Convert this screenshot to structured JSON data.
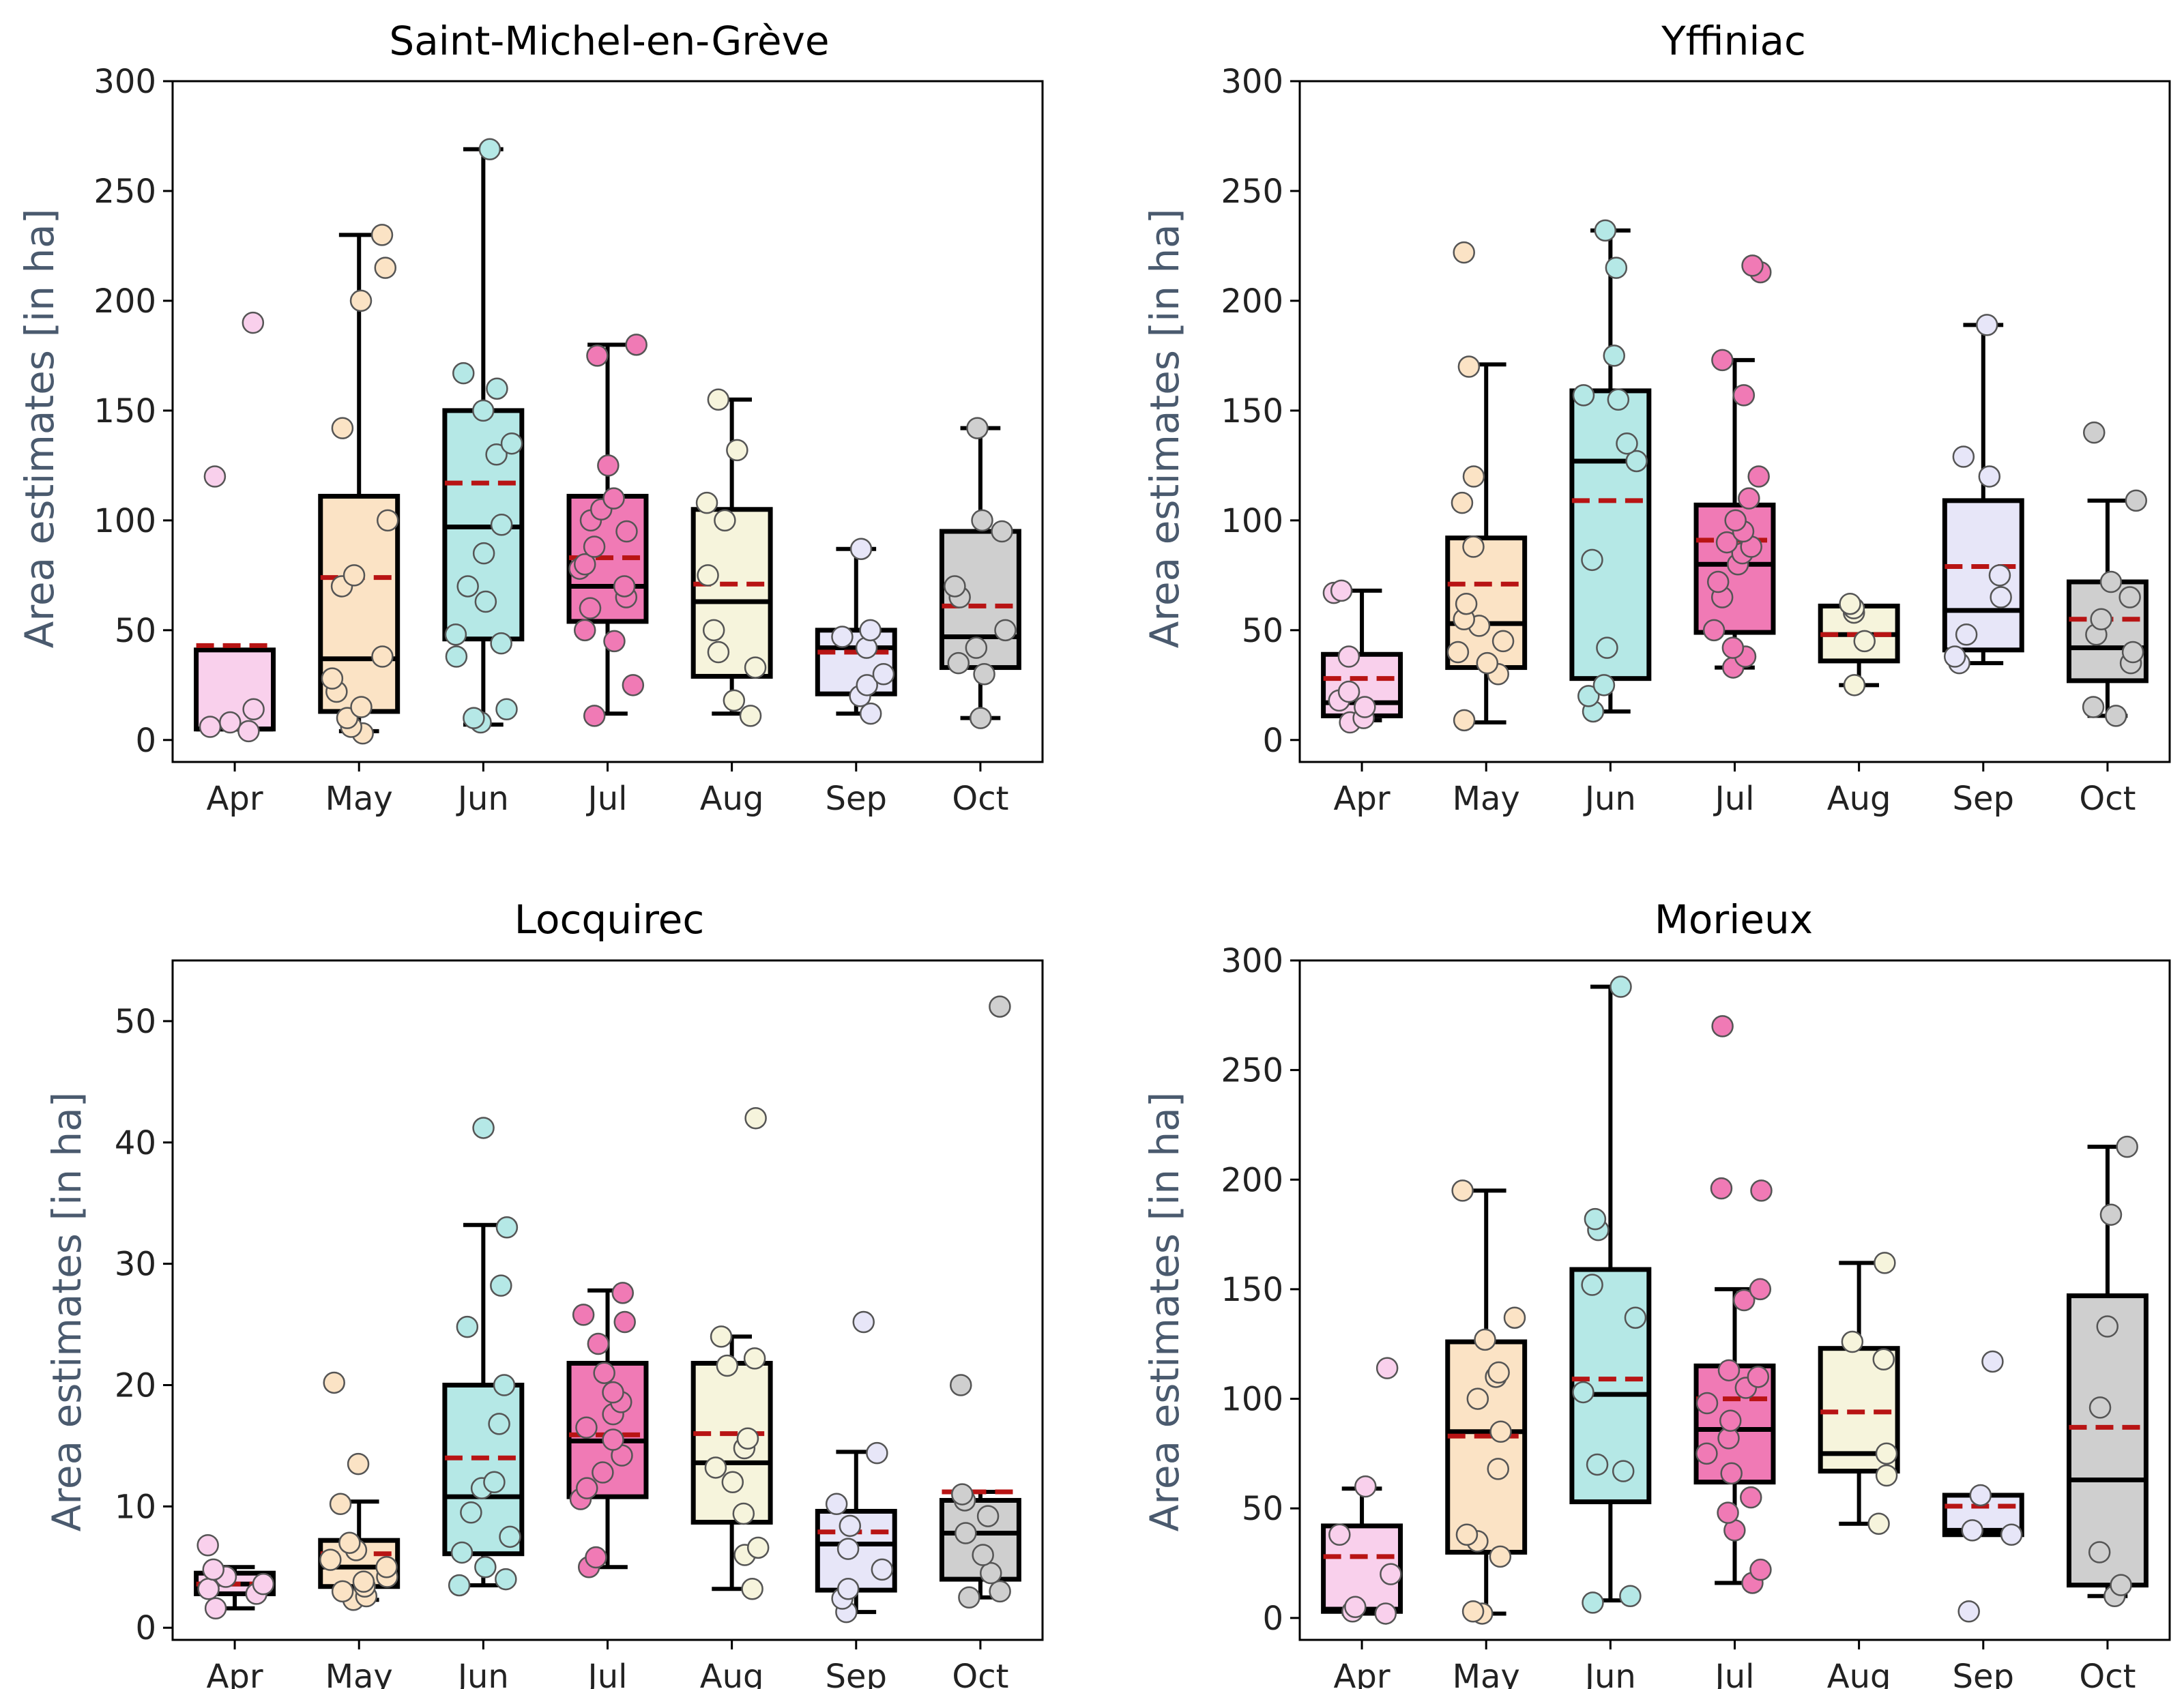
{
  "figure": {
    "colors": {
      "months": [
        "#f9d0ec",
        "#fbe3c5",
        "#b5e8e6",
        "#f07ab5",
        "#f6f4dc",
        "#e7e6f8",
        "#cfcfcf"
      ],
      "median": "#000000",
      "mean": "#b81414",
      "axis_label": "#4a5a6e"
    }
  },
  "chart_data": [
    {
      "type": "box",
      "title": "Saint-Michel-en-Grève",
      "xlabel": "",
      "ylabel": "Area estimates [in ha]",
      "ylim": [
        -10,
        300
      ],
      "yticks": [
        0,
        50,
        100,
        150,
        200,
        250,
        300
      ],
      "categories": [
        "Apr",
        "May",
        "Jun",
        "Jul",
        "Aug",
        "Sep",
        "Oct"
      ],
      "boxes": [
        {
          "q1": 5,
          "median": 5,
          "q3": 41,
          "mean": 43,
          "whislo": 5,
          "whishi": 41,
          "points": [
            4,
            6,
            8,
            14,
            120,
            190
          ]
        },
        {
          "q1": 13,
          "median": 37,
          "q3": 111,
          "mean": 74,
          "whislo": 4,
          "whishi": 230,
          "points": [
            3,
            6,
            10,
            15,
            22,
            28,
            38,
            70,
            75,
            100,
            142,
            200,
            215,
            230
          ]
        },
        {
          "q1": 46,
          "median": 97,
          "q3": 150,
          "mean": 117,
          "whislo": 7,
          "whishi": 269,
          "points": [
            8,
            10,
            14,
            38,
            44,
            48,
            63,
            70,
            85,
            98,
            130,
            135,
            150,
            160,
            167,
            269
          ]
        },
        {
          "q1": 54,
          "median": 70,
          "q3": 111,
          "mean": 83,
          "whislo": 12,
          "whishi": 180,
          "points": [
            11,
            25,
            45,
            50,
            60,
            65,
            70,
            78,
            80,
            88,
            95,
            100,
            105,
            110,
            125,
            175,
            180
          ]
        },
        {
          "q1": 29,
          "median": 63,
          "q3": 105,
          "mean": 71,
          "whislo": 12,
          "whishi": 155,
          "points": [
            11,
            18,
            33,
            40,
            50,
            75,
            100,
            108,
            132,
            155
          ]
        },
        {
          "q1": 21,
          "median": 42,
          "q3": 50,
          "mean": 40,
          "whislo": 12,
          "whishi": 87,
          "points": [
            12,
            20,
            25,
            30,
            42,
            47,
            50,
            87
          ]
        },
        {
          "q1": 33,
          "median": 47,
          "q3": 95,
          "mean": 61,
          "whislo": 10,
          "whishi": 142,
          "points": [
            10,
            30,
            35,
            42,
            50,
            65,
            70,
            95,
            100,
            142
          ]
        }
      ]
    },
    {
      "type": "box",
      "title": "Yffiniac",
      "xlabel": "",
      "ylabel": "Area estimates [in ha]",
      "ylim": [
        -10,
        300
      ],
      "yticks": [
        0,
        50,
        100,
        150,
        200,
        250,
        300
      ],
      "categories": [
        "Apr",
        "May",
        "Jun",
        "Jul",
        "Aug",
        "Sep",
        "Oct"
      ],
      "boxes": [
        {
          "q1": 11,
          "median": 17,
          "q3": 39,
          "mean": 28,
          "whislo": 9,
          "whishi": 68,
          "points": [
            8,
            10,
            15,
            18,
            22,
            38,
            67,
            68
          ]
        },
        {
          "q1": 33,
          "median": 53,
          "q3": 92,
          "mean": 71,
          "whislo": 8,
          "whishi": 171,
          "points": [
            9,
            30,
            35,
            40,
            45,
            52,
            55,
            62,
            88,
            108,
            120,
            170,
            222
          ]
        },
        {
          "q1": 28,
          "median": 127,
          "q3": 159,
          "mean": 109,
          "whislo": 13,
          "whishi": 232,
          "points": [
            13,
            20,
            25,
            42,
            82,
            127,
            135,
            155,
            157,
            175,
            215,
            232
          ]
        },
        {
          "q1": 49,
          "median": 80,
          "q3": 107,
          "mean": 91,
          "whislo": 33,
          "whishi": 173,
          "points": [
            33,
            38,
            42,
            50,
            65,
            72,
            80,
            85,
            88,
            90,
            95,
            100,
            110,
            120,
            157,
            173,
            213,
            216
          ]
        },
        {
          "q1": 36,
          "median": 48,
          "q3": 61,
          "mean": 48,
          "whislo": 25,
          "whishi": 61,
          "points": [
            25,
            45,
            58,
            60,
            62
          ]
        },
        {
          "q1": 41,
          "median": 59,
          "q3": 109,
          "mean": 79,
          "whislo": 35,
          "whishi": 189,
          "points": [
            35,
            38,
            48,
            65,
            75,
            120,
            129,
            189
          ]
        },
        {
          "q1": 27,
          "median": 42,
          "q3": 72,
          "mean": 55,
          "whislo": 11,
          "whishi": 109,
          "points": [
            11,
            15,
            35,
            40,
            48,
            55,
            65,
            72,
            109,
            140
          ]
        }
      ]
    },
    {
      "type": "box",
      "title": "Locquirec",
      "xlabel": "",
      "ylabel": "Area estimates [in ha]",
      "ylim": [
        -1,
        55
      ],
      "yticks": [
        0,
        10,
        20,
        30,
        40,
        50
      ],
      "categories": [
        "Apr",
        "May",
        "Jun",
        "Jul",
        "Aug",
        "Sep",
        "Oct"
      ],
      "boxes": [
        {
          "q1": 2.8,
          "median": 3.6,
          "q3": 4.5,
          "mean": 3.6,
          "whislo": 1.6,
          "whishi": 5.0,
          "points": [
            1.6,
            2.8,
            3.2,
            3.6,
            4.2,
            4.8,
            6.8
          ]
        },
        {
          "q1": 3.4,
          "median": 5.0,
          "q3": 7.2,
          "mean": 6.1,
          "whislo": 2.3,
          "whishi": 10.4,
          "points": [
            2.3,
            2.6,
            3.0,
            3.4,
            3.8,
            4.2,
            5.0,
            5.6,
            6.4,
            7.0,
            10.2,
            13.5,
            20.2
          ]
        },
        {
          "q1": 6.1,
          "median": 10.8,
          "q3": 20.0,
          "mean": 14.0,
          "whislo": 3.5,
          "whishi": 33.2,
          "points": [
            3.5,
            4.0,
            5.0,
            6.2,
            7.5,
            9.5,
            11.5,
            12.0,
            16.8,
            20.0,
            24.8,
            28.2,
            33.0,
            41.2
          ]
        },
        {
          "q1": 10.8,
          "median": 15.4,
          "q3": 21.8,
          "mean": 15.9,
          "whislo": 5.0,
          "whishi": 27.8,
          "points": [
            5.0,
            5.8,
            10.6,
            11.5,
            12.8,
            14.2,
            15.5,
            16.5,
            17.6,
            18.6,
            19.4,
            21.0,
            23.4,
            25.2,
            25.8,
            27.6
          ]
        },
        {
          "q1": 8.7,
          "median": 13.6,
          "q3": 21.8,
          "mean": 16.0,
          "whislo": 3.2,
          "whishi": 24.0,
          "points": [
            3.2,
            6.0,
            6.6,
            9.4,
            12.0,
            13.2,
            14.8,
            15.6,
            21.6,
            22.2,
            24.0,
            42.0
          ]
        },
        {
          "q1": 3.1,
          "median": 6.9,
          "q3": 9.6,
          "mean": 7.9,
          "whislo": 1.3,
          "whishi": 14.5,
          "points": [
            1.3,
            2.4,
            3.2,
            4.8,
            6.5,
            8.4,
            10.2,
            14.4,
            25.2
          ]
        },
        {
          "q1": 4.0,
          "median": 7.8,
          "q3": 10.5,
          "mean": 11.2,
          "whislo": 2.5,
          "whishi": 11.2,
          "points": [
            2.5,
            3.0,
            4.5,
            6.0,
            7.8,
            9.2,
            10.5,
            11.0,
            20.0,
            51.2
          ]
        }
      ]
    },
    {
      "type": "box",
      "title": "Morieux",
      "xlabel": "",
      "ylabel": "Area estimates [in ha]",
      "ylim": [
        -10,
        300
      ],
      "yticks": [
        0,
        50,
        100,
        150,
        200,
        250,
        300
      ],
      "categories": [
        "Apr",
        "May",
        "Jun",
        "Jul",
        "Aug",
        "Sep",
        "Oct"
      ],
      "boxes": [
        {
          "q1": 3,
          "median": 4,
          "q3": 42,
          "mean": 28,
          "whislo": 2,
          "whishi": 59,
          "points": [
            2,
            3,
            5,
            20,
            38,
            60,
            114
          ]
        },
        {
          "q1": 30,
          "median": 85,
          "q3": 126,
          "mean": 83,
          "whislo": 2,
          "whishi": 195,
          "points": [
            2,
            3,
            28,
            35,
            38,
            68,
            85,
            100,
            110,
            112,
            127,
            137,
            195
          ]
        },
        {
          "q1": 53,
          "median": 102,
          "q3": 159,
          "mean": 109,
          "whislo": 8,
          "whishi": 288,
          "points": [
            7,
            10,
            67,
            70,
            103,
            137,
            152,
            177,
            182,
            288
          ]
        },
        {
          "q1": 62,
          "median": 86,
          "q3": 115,
          "mean": 100,
          "whislo": 16,
          "whishi": 150,
          "points": [
            16,
            22,
            40,
            48,
            55,
            66,
            75,
            82,
            90,
            98,
            105,
            110,
            113,
            145,
            150,
            195,
            196,
            270
          ]
        },
        {
          "q1": 67,
          "median": 75,
          "q3": 123,
          "mean": 94,
          "whislo": 43,
          "whishi": 162,
          "points": [
            43,
            65,
            75,
            118,
            126,
            162
          ]
        },
        {
          "q1": 38,
          "median": 40,
          "q3": 56,
          "mean": 51,
          "whislo": 38,
          "whishi": 56,
          "points": [
            3,
            38,
            40,
            56,
            117
          ]
        },
        {
          "q1": 15,
          "median": 63,
          "q3": 147,
          "mean": 87,
          "whislo": 10,
          "whishi": 215,
          "points": [
            10,
            15,
            30,
            96,
            133,
            184,
            215
          ]
        }
      ]
    }
  ]
}
